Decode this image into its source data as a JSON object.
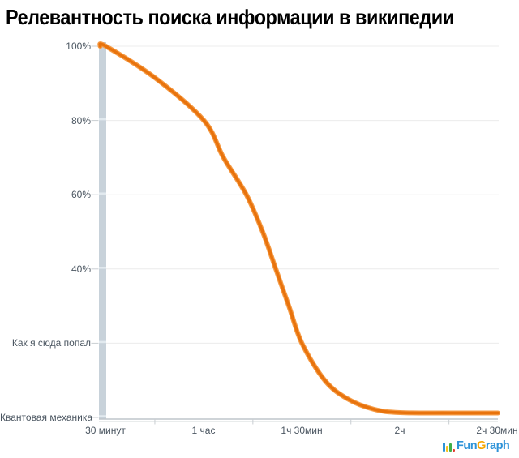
{
  "title": "Релевантность поиска информации в википедии",
  "colors": {
    "title": "#000000",
    "label": "#4a5560",
    "curve": "#e8730d",
    "curve_halo": "#f59b45",
    "grid": "#ececec",
    "tick": "#c9ced2",
    "axis_bar": "#c8d2da",
    "axis_bar_break": "#e2eaef",
    "axis_line": "#bfc6cb",
    "axis_line2": "#e6e9ea",
    "logo_blue": "#2e93d8",
    "logo_orange": "#f7a600",
    "logo_green": "#3faf49",
    "logo_red": "#e23d2e",
    "logo_yellow": "#f7c21e"
  },
  "chart_data": {
    "type": "line",
    "title": "Релевантность поиска информации в википедии",
    "xlabel": "",
    "ylabel": "",
    "categories": [
      "30 минут",
      "1 час",
      "1ч 30мин",
      "2ч",
      "2ч 30мин"
    ],
    "category_minutes": [
      30,
      60,
      90,
      120,
      150
    ],
    "yticks": [
      {
        "value": 100,
        "label": "100%"
      },
      {
        "value": 80,
        "label": "80%"
      },
      {
        "value": 60,
        "label": "60%"
      },
      {
        "value": 40,
        "label": "40%"
      },
      {
        "value": 20,
        "label": "Как я сюда попал"
      },
      {
        "value": 0,
        "label": "Квантовая механика"
      }
    ],
    "ylim": [
      0,
      100
    ],
    "grid": "horizontal",
    "legend": "none",
    "series": [
      {
        "name": "Релевантность поиска",
        "color": "#e8730d",
        "points_minutes_percent": [
          [
            30,
            100
          ],
          [
            45,
            91.5
          ],
          [
            60,
            80
          ],
          [
            66,
            70
          ],
          [
            73,
            60
          ],
          [
            78,
            50
          ],
          [
            82,
            40
          ],
          [
            86,
            30
          ],
          [
            90,
            20
          ],
          [
            97,
            10
          ],
          [
            104,
            5
          ],
          [
            112,
            2.2
          ],
          [
            120,
            1.3
          ],
          [
            135,
            1.2
          ],
          [
            150,
            1.2
          ]
        ]
      }
    ]
  },
  "logo": {
    "parts": [
      {
        "text": "Fun"
      },
      {
        "text": "G"
      },
      {
        "text": "raph"
      }
    ]
  }
}
